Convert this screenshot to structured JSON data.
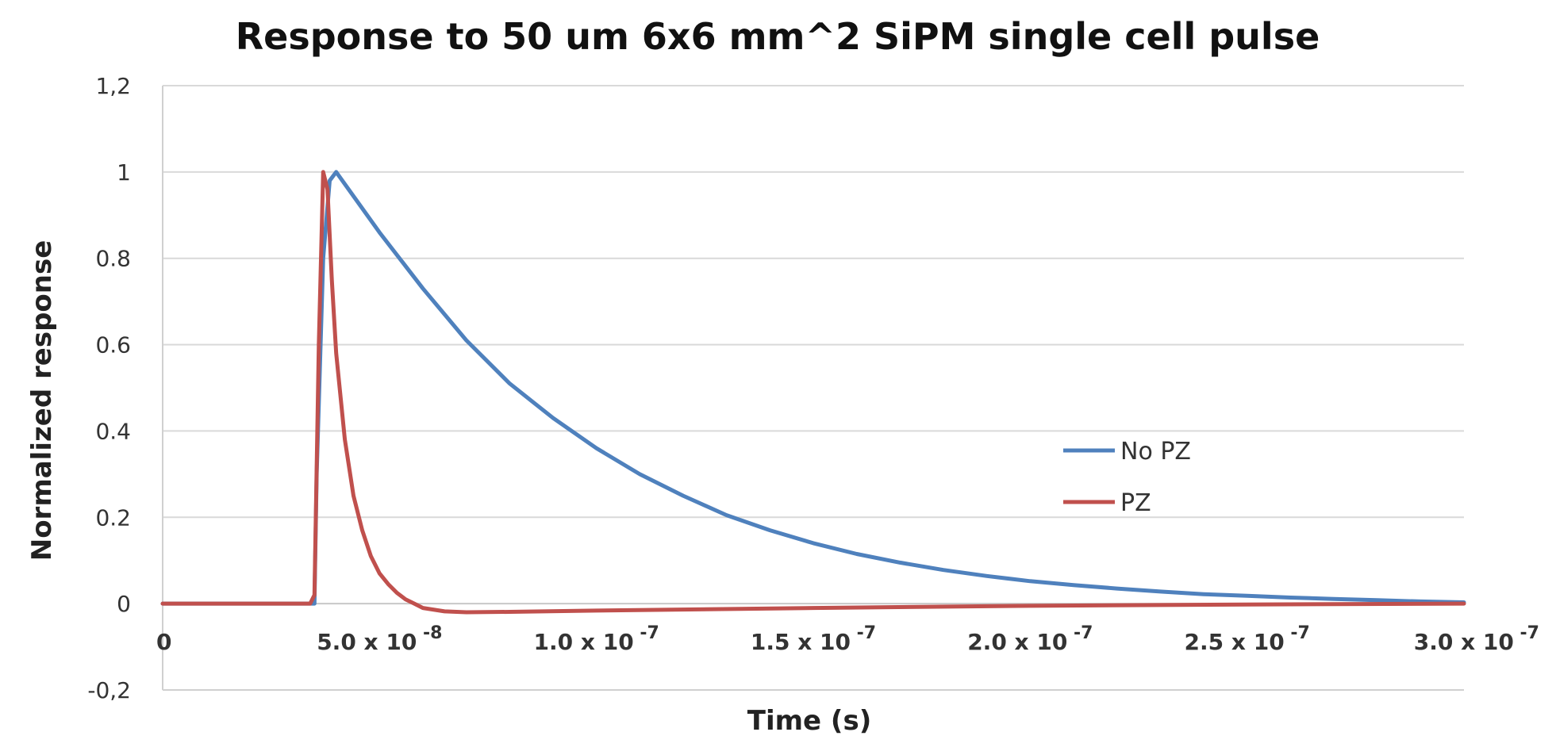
{
  "chart_data": {
    "type": "line",
    "title": "Response to 50 um 6x6 mm^2 SiPM single cell pulse",
    "xlabel": "Time (s)",
    "ylabel": "Normalized response",
    "xlim": [
      0,
      3e-07
    ],
    "ylim": [
      -0.2,
      1.2
    ],
    "grid": true,
    "legend": "center-right",
    "y_ticks": [
      {
        "value": 1.2,
        "label": "1,2"
      },
      {
        "value": 1.0,
        "label": "1"
      },
      {
        "value": 0.8,
        "label": "0.8"
      },
      {
        "value": 0.6,
        "label": "0.6"
      },
      {
        "value": 0.4,
        "label": "0.4"
      },
      {
        "value": 0.2,
        "label": "0.2"
      },
      {
        "value": 0.0,
        "label": "0"
      },
      {
        "value": -0.2,
        "label": "-0,2"
      }
    ],
    "x_ticks": [
      {
        "value": 0,
        "label": "0"
      },
      {
        "value": 5e-08,
        "label": "5.0 x 10",
        "exp": "-8"
      },
      {
        "value": 1e-07,
        "label": "1.0 x 10",
        "exp": "-7"
      },
      {
        "value": 1.5e-07,
        "label": "1.5 x 10",
        "exp": "-7"
      },
      {
        "value": 2e-07,
        "label": "2.0 x 10",
        "exp": "-7"
      },
      {
        "value": 2.5e-07,
        "label": "2.5 x 10",
        "exp": "-7"
      },
      {
        "value": 3e-07,
        "label": "3.0 x 10",
        "exp": "-7"
      }
    ],
    "series": [
      {
        "name": "No PZ",
        "color": "#4f81bd",
        "x": [
          0,
          3.5e-08,
          3.55e-08,
          3.7e-08,
          3.85e-08,
          4e-08,
          5e-08,
          6e-08,
          7e-08,
          8e-08,
          9e-08,
          1e-07,
          1.1e-07,
          1.2e-07,
          1.3e-07,
          1.4e-07,
          1.5e-07,
          1.6e-07,
          1.7e-07,
          1.8e-07,
          1.9e-07,
          2e-07,
          2.1e-07,
          2.2e-07,
          2.3e-07,
          2.4e-07,
          2.5e-07,
          2.6e-07,
          2.7e-07,
          2.8e-07,
          2.9e-07,
          3e-07
        ],
        "y": [
          0,
          0,
          0.3,
          0.8,
          0.98,
          1.0,
          0.86,
          0.73,
          0.61,
          0.51,
          0.43,
          0.36,
          0.3,
          0.25,
          0.205,
          0.17,
          0.14,
          0.115,
          0.095,
          0.078,
          0.064,
          0.052,
          0.043,
          0.035,
          0.028,
          0.022,
          0.018,
          0.014,
          0.011,
          0.008,
          0.005,
          0.003
        ]
      },
      {
        "name": "PZ",
        "color": "#c0504d",
        "x": [
          0,
          3.4e-08,
          3.5e-08,
          3.6e-08,
          3.7e-08,
          3.8e-08,
          3.9e-08,
          4e-08,
          4.2e-08,
          4.4e-08,
          4.6e-08,
          4.8e-08,
          5e-08,
          5.2e-08,
          5.4e-08,
          5.6e-08,
          5.8e-08,
          6e-08,
          6.5e-08,
          7e-08,
          8e-08,
          1e-07,
          1.5e-07,
          2e-07,
          2.5e-07,
          3e-07
        ],
        "y": [
          0,
          0,
          0.02,
          0.6,
          1.0,
          0.96,
          0.75,
          0.58,
          0.38,
          0.25,
          0.17,
          0.11,
          0.07,
          0.045,
          0.025,
          0.01,
          0.0,
          -0.01,
          -0.018,
          -0.02,
          -0.019,
          -0.016,
          -0.01,
          -0.005,
          -0.002,
          0.0
        ]
      }
    ]
  }
}
